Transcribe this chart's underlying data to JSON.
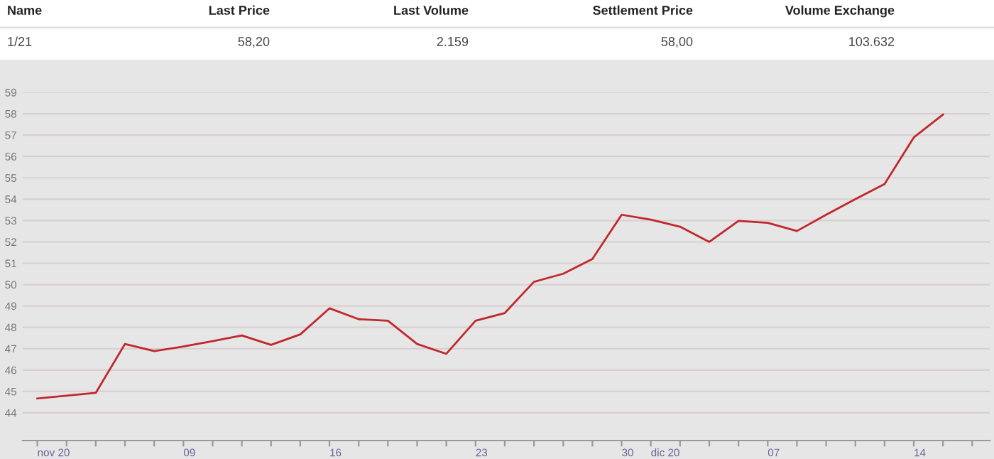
{
  "chart_data": {
    "type": "line",
    "annotations": [
      "Name",
      "Last Price",
      "Last Volume",
      "Settlement Price",
      "Volume Exchange",
      "1/21",
      "58,20",
      "2.159",
      "58,00",
      "103.632"
    ],
    "categories": [
      "nov 20",
      null,
      null,
      null,
      null,
      "09",
      null,
      null,
      null,
      null,
      "16",
      null,
      null,
      null,
      null,
      "23",
      null,
      null,
      null,
      null,
      "30",
      "dic 20",
      null,
      null,
      null,
      "07",
      null,
      null,
      null,
      null,
      "14",
      null,
      null
    ],
    "series": [
      {
        "color": "#c0282d",
        "values": [
          44.67,
          44.8,
          44.93,
          47.22,
          46.89,
          47.1,
          47.35,
          47.62,
          47.18,
          47.67,
          48.89,
          48.38,
          48.31,
          47.22,
          46.76,
          48.31,
          48.67,
          50.13,
          50.51,
          51.2,
          53.27,
          53.04,
          52.71,
          52.0,
          52.98,
          52.89,
          52.51,
          53.27,
          54.0,
          54.71,
          56.89,
          57.96,
          null
        ]
      }
    ],
    "ylim": [
      42.7,
      59
    ],
    "yticks": [
      44,
      45,
      46,
      47,
      48,
      49,
      50,
      51,
      52,
      53,
      54,
      55,
      56,
      57,
      58,
      59
    ],
    "grid": "y",
    "legend": false,
    "marker": "none",
    "line_style": "solid"
  }
}
